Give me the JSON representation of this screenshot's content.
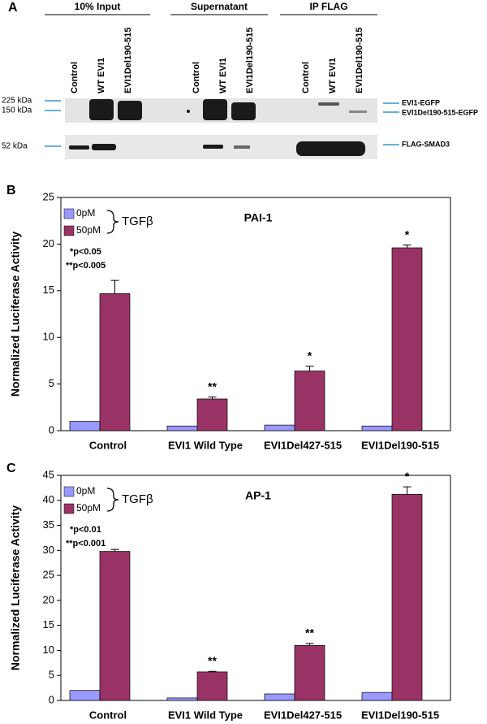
{
  "blot": {
    "panel": "A",
    "groups": [
      "10% Input",
      "Supernatant",
      "IP FLAG"
    ],
    "lanes": [
      [
        "Control",
        "WT EVI1",
        "EVI1Del190-515"
      ],
      [
        "Control",
        "WT EVI1",
        "EVI1Del190-515"
      ],
      [
        "Control",
        "WT EVI1",
        "EVI1Del190-515"
      ]
    ],
    "markers": [
      "225 kDa",
      "150 kDa",
      "52 kDa"
    ],
    "right_labels": [
      "EVI1-EGFP",
      "EVI1Del190-515-EGFP",
      "FLAG-SMAD3"
    ]
  },
  "chart_data": [
    {
      "type": "bar",
      "panel": "B",
      "title": "PAI-1",
      "ylabel": "Normalized Luciferase Activity",
      "categories": [
        "Control",
        "EVI1 Wild Type",
        "EVI1Del427-515",
        "EVI1Del190-515"
      ],
      "series": [
        {
          "name": "0pM",
          "color": "#9999ff",
          "values": [
            1.0,
            0.5,
            0.6,
            0.5
          ]
        },
        {
          "name": "50pM",
          "color": "#993366",
          "values": [
            14.7,
            3.4,
            6.4,
            19.6
          ],
          "errors": [
            1.4,
            0.2,
            0.5,
            0.3
          ],
          "significance": [
            null,
            "**",
            "*",
            "*"
          ]
        }
      ],
      "legend_group": "TGFβ",
      "annotations": [
        "*p<0.05",
        "**p<0.005"
      ],
      "ylim": [
        0,
        25
      ],
      "yticks": [
        0,
        5,
        10,
        15,
        20,
        25
      ]
    },
    {
      "type": "bar",
      "panel": "C",
      "title": "AP-1",
      "ylabel": "Normalized Luciferase Activity",
      "categories": [
        "Control",
        "EVI1 Wild Type",
        "EVI1Del427-515",
        "EVI1Del190-515"
      ],
      "series": [
        {
          "name": "0pM",
          "color": "#9999ff",
          "values": [
            2.0,
            0.5,
            1.3,
            1.6
          ]
        },
        {
          "name": "50pM",
          "color": "#993366",
          "values": [
            29.8,
            5.7,
            11.0,
            41.2
          ],
          "errors": [
            0.4,
            0.1,
            0.4,
            1.5
          ],
          "significance": [
            null,
            "**",
            "**",
            "*"
          ]
        }
      ],
      "legend_group": "TGFβ",
      "annotations": [
        "*p<0.01",
        "**p<0.001"
      ],
      "ylim": [
        0,
        45
      ],
      "yticks": [
        0,
        5,
        10,
        15,
        20,
        25,
        30,
        35,
        40,
        45
      ]
    }
  ]
}
